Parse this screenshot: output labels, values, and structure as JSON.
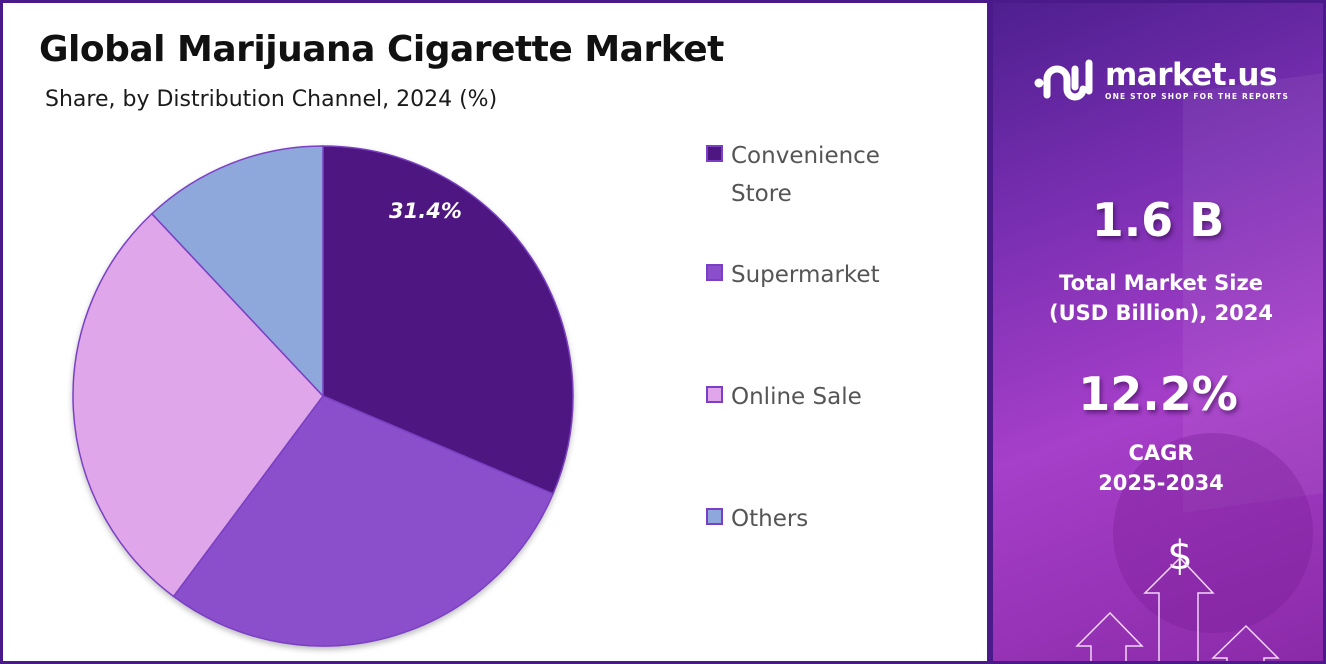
{
  "title": "Global Marijuana Cigarette Market",
  "subtitle": "Share, by Distribution Channel, 2024 (%)",
  "pie_label": "31.4%",
  "legend": [
    {
      "label_line1": "Convenience",
      "label_line2": "Store",
      "color": "#4e1680"
    },
    {
      "label_line1": "Supermarket",
      "label_line2": "",
      "color": "#8b4fcc"
    },
    {
      "label_line1": "Online Sale",
      "label_line2": "",
      "color": "#e0a6ea"
    },
    {
      "label_line1": "Others",
      "label_line2": "",
      "color": "#8ea8dc"
    }
  ],
  "brand": {
    "name": "market.us",
    "tagline": "ONE STOP SHOP FOR THE REPORTS"
  },
  "stats": {
    "market_size_value": "1.6 B",
    "market_size_label_line1": "Total Market Size",
    "market_size_label_line2": "(USD Billion), 2024",
    "cagr_value": "12.2%",
    "cagr_label_line1": "CAGR",
    "cagr_label_line2": "2025-2034"
  },
  "decor": {
    "dollar_symbol": "$"
  },
  "chart_data": {
    "type": "pie",
    "title": "Global Marijuana Cigarette Market",
    "subtitle": "Share, by Distribution Channel, 2024 (%)",
    "categories": [
      "Convenience Store",
      "Supermarket",
      "Online Sale",
      "Others"
    ],
    "values": [
      31.4,
      28.8,
      27.8,
      12.0
    ],
    "colors": [
      "#4e1680",
      "#8b4fcc",
      "#e0a6ea",
      "#8ea8dc"
    ],
    "data_labels": {
      "Convenience Store": "31.4%"
    },
    "start_angle": "12 o'clock, clockwise",
    "legend_position": "right"
  }
}
